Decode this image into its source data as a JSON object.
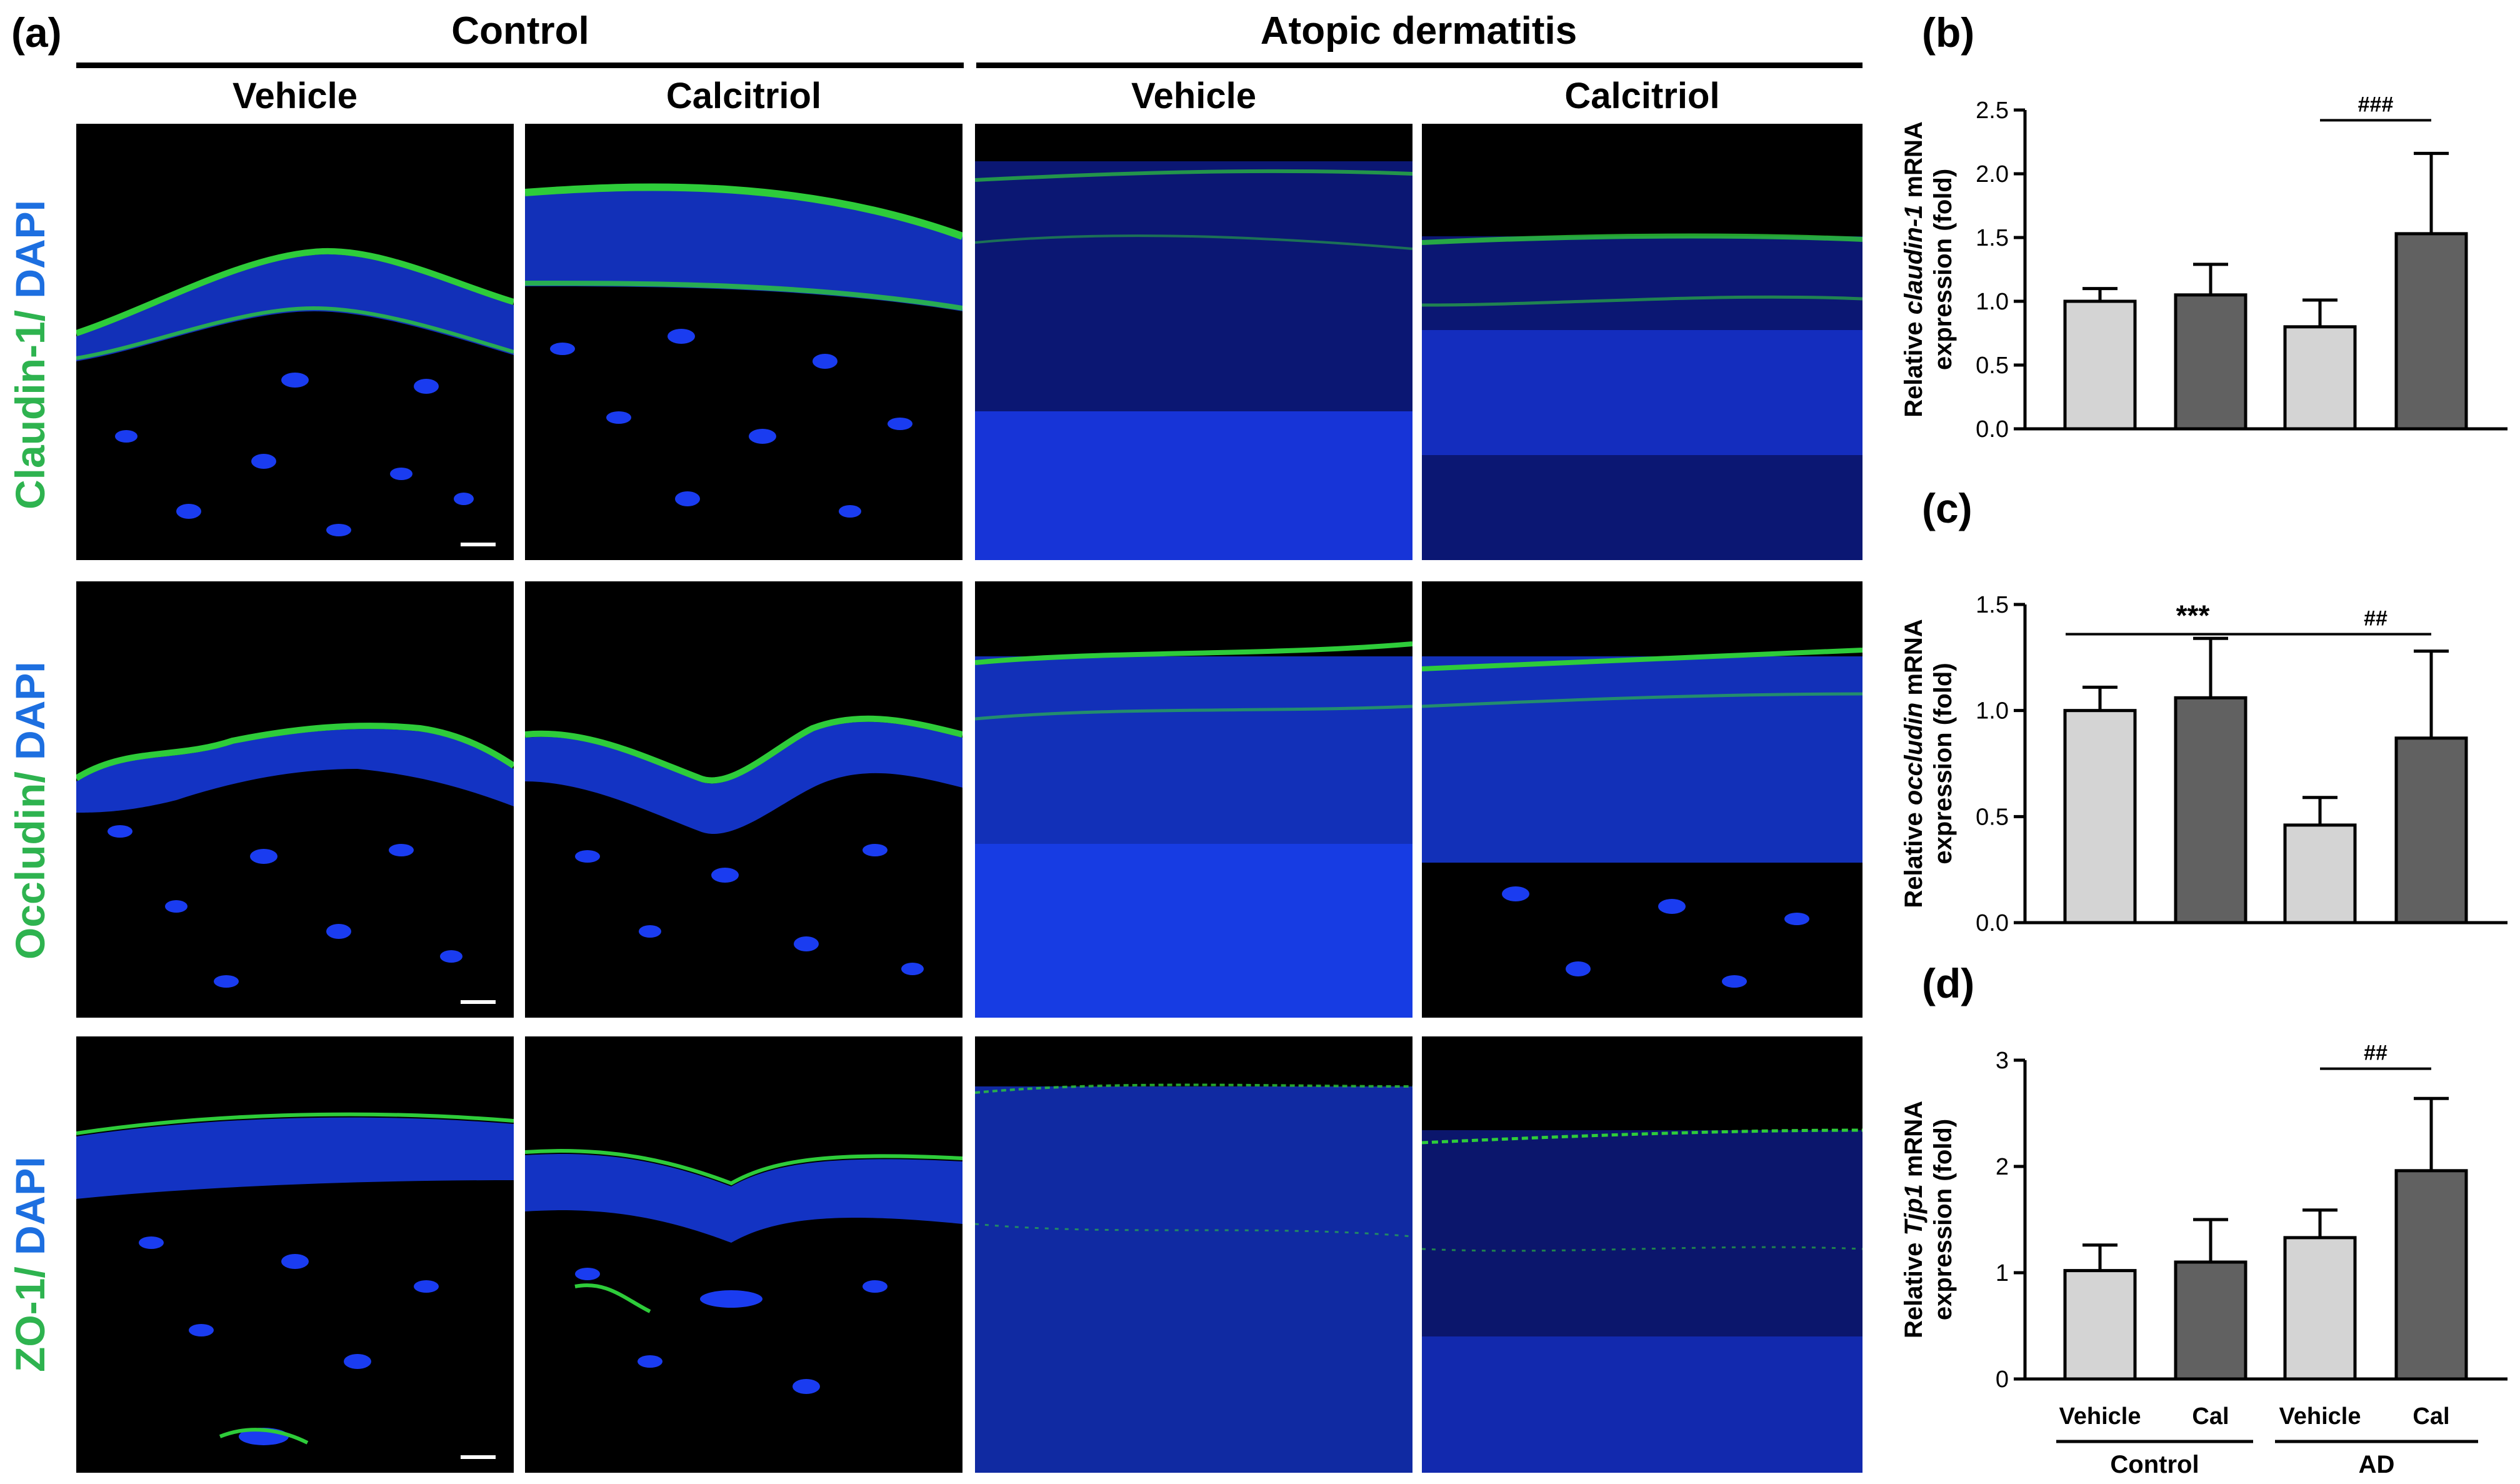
{
  "panel_labels": [
    "(a)",
    "(b)",
    "(c)",
    "(d)"
  ],
  "groups": [
    "Control",
    "Atopic dermatitis"
  ],
  "treatments": [
    "Vehicle",
    "Calcitriol",
    "Vehicle",
    "Calcitriol"
  ],
  "row_labels": [
    {
      "marker": "Claudin-1/",
      "stain": "DAPI"
    },
    {
      "marker": "Occludin/",
      "stain": "DAPI"
    },
    {
      "marker": "ZO-1/",
      "stain": "DAPI"
    }
  ],
  "colors": {
    "green": "#2eb34f",
    "blue": "#1d6fe0",
    "light_bar": "#d4d4d4",
    "dark_bar": "#616161"
  },
  "bottom_axis": {
    "tick_labels": [
      "Vehicle",
      "Cal",
      "Vehicle",
      "Cal"
    ],
    "groups": [
      "Control",
      "AD"
    ]
  },
  "chart_data": [
    {
      "type": "bar",
      "panel": "(b)",
      "categories": [
        "Vehicle",
        "Cal",
        "Vehicle",
        "Cal"
      ],
      "values": [
        1.0,
        1.05,
        0.8,
        1.53
      ],
      "errors": [
        0.1,
        0.24,
        0.21,
        0.63
      ],
      "ylim": [
        0,
        2.5
      ],
      "yticks": [
        "0.0",
        "0.5",
        "1.0",
        "1.5",
        "2.0",
        "2.5"
      ],
      "ylabel_pre": "Relative ",
      "ylabel_gene": "claudin-1",
      "ylabel_post": " mRNA",
      "ylabel_line2": "expression (fold)",
      "annotations": [
        {
          "from": 2,
          "to": 3,
          "text": "###"
        }
      ]
    },
    {
      "type": "bar",
      "panel": "(c)",
      "categories": [
        "Vehicle",
        "Cal",
        "Vehicle",
        "Cal"
      ],
      "values": [
        1.0,
        1.06,
        0.46,
        0.87
      ],
      "errors": [
        0.11,
        0.28,
        0.13,
        0.41
      ],
      "ylim": [
        0,
        1.5
      ],
      "yticks": [
        "0.0",
        "0.5",
        "1.0",
        "1.5"
      ],
      "ylabel_pre": "Relative ",
      "ylabel_gene": "occludin",
      "ylabel_post": " mRNA",
      "ylabel_line2": "expression (fold)",
      "annotations": [
        {
          "from": 0,
          "to": 2,
          "text": "***"
        },
        {
          "from": 2,
          "to": 3,
          "text": "##"
        }
      ]
    },
    {
      "type": "bar",
      "panel": "(d)",
      "categories": [
        "Vehicle",
        "Cal",
        "Vehicle",
        "Cal"
      ],
      "values": [
        1.02,
        1.1,
        1.33,
        1.96
      ],
      "errors": [
        0.24,
        0.4,
        0.26,
        0.68
      ],
      "ylim": [
        0,
        3
      ],
      "yticks": [
        "0",
        "1",
        "2",
        "3"
      ],
      "ylabel_pre": "Relative ",
      "ylabel_gene": "Tjp1",
      "ylabel_post": " mRNA",
      "ylabel_line2": "expression (fold)",
      "annotations": [
        {
          "from": 2,
          "to": 3,
          "text": "##"
        }
      ]
    }
  ]
}
